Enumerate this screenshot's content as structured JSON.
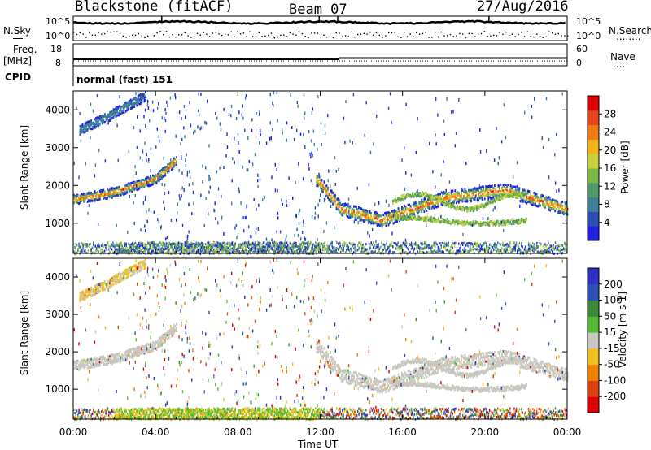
{
  "header": {
    "station": "Blackstone (fitACF)",
    "beam": "Beam 07",
    "date": "27/Aug/2016"
  },
  "left_labels": {
    "nsky": "N.Sky",
    "freq": "Freq.",
    "freq_unit": "[MHz]",
    "cpid": "CPID"
  },
  "right_labels": {
    "nsearch": "N.Search",
    "nsearch_dots": "........",
    "nave": "Nave",
    "nave_dots": "...."
  },
  "noise_axis": {
    "left": [
      "10^5",
      "10^0"
    ],
    "right": [
      "10^5",
      "10^0"
    ]
  },
  "freq_axis": {
    "left": [
      "18",
      "8"
    ],
    "right": [
      "60",
      "0"
    ]
  },
  "cpid_text": "normal (fast) 151",
  "colors": {
    "power": [
      "#1f1fe6",
      "#2b4fb0",
      "#3d7f9a",
      "#4e9a6a",
      "#79b646",
      "#c8d03c",
      "#f2b21a",
      "#f07b12",
      "#e8461a",
      "#e00000"
    ],
    "velocity": [
      "#3030c0",
      "#2a52b4",
      "#3a8a3a",
      "#55bb33",
      "#c8c8c0",
      "#f0c020",
      "#f08000",
      "#e04010",
      "#e00000"
    ],
    "ground": "#c8c8c0"
  },
  "chart_data": [
    {
      "type": "heatmap",
      "name": "power",
      "xlabel": "",
      "ylabel": "Slant Range [km]",
      "ylim": [
        200,
        4500
      ],
      "yticks": [
        "4000",
        "3000",
        "2000",
        "1000"
      ],
      "xticks": [
        "00:00",
        "04:00",
        "08:00",
        "12:00",
        "16:00",
        "20:00",
        "00:00"
      ],
      "colorbar": {
        "label": "Power [dB]",
        "ticks": [
          "28",
          "24",
          "20",
          "16",
          "12",
          "8",
          "4"
        ],
        "range": [
          0,
          30
        ]
      },
      "scatter_bands": [
        {
          "t": [
            0.0,
            2.0,
            4.0,
            5.0
          ],
          "range_km": [
            1650,
            1850,
            2200,
            2700
          ]
        },
        {
          "t": [
            0.3,
            1.5,
            3.5
          ],
          "range_km": [
            3500,
            3800,
            4400
          ]
        },
        {
          "t": [
            11.8,
            13.0,
            15.0,
            18.0,
            21.0,
            24.0
          ],
          "range_km": [
            2200,
            1400,
            1100,
            1700,
            1900,
            1400
          ]
        }
      ]
    },
    {
      "type": "heatmap",
      "name": "velocity",
      "xlabel": "Time UT",
      "ylabel": "Slant Range [km]",
      "ylim": [
        200,
        4500
      ],
      "yticks": [
        "4000",
        "3000",
        "2000",
        "1000"
      ],
      "xticks": [
        "00:00",
        "04:00",
        "08:00",
        "12:00",
        "16:00",
        "20:00",
        "00:00"
      ],
      "colorbar": {
        "label": "Velocity [m s-1]",
        "ticks": [
          "200",
          "100",
          "50",
          "15",
          "-15",
          "-50",
          "-100",
          "-200"
        ],
        "range": [
          -250,
          250
        ]
      }
    }
  ]
}
